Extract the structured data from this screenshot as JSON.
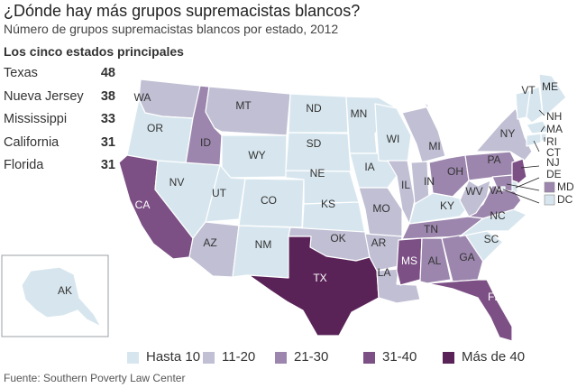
{
  "title": "¿Dónde hay más grupos supremacistas blancos?",
  "subtitle": "Número de grupos supremacistas blancos por estado, 2012",
  "top_heading": "Los cinco estados principales",
  "top_states": [
    {
      "name": "Texas",
      "count": "48"
    },
    {
      "name": "Nueva Jersey",
      "count": "38"
    },
    {
      "name": "Mississippi",
      "count": "33"
    },
    {
      "name": "California",
      "count": "31"
    },
    {
      "name": "Florida",
      "count": "31"
    }
  ],
  "colors": {
    "c1": "#d7e6ee",
    "c2": "#c0bfd4",
    "c3": "#9c86ad",
    "c4": "#7c4f85",
    "c5": "#5a2358",
    "border": "#ffffff",
    "label": "#333333",
    "label_light": "#ffffff"
  },
  "legend": [
    {
      "label": "Hasta 10",
      "cls": "c1"
    },
    {
      "label": "11-20",
      "cls": "c2"
    },
    {
      "label": "21-30",
      "cls": "c3"
    },
    {
      "label": "31-40",
      "cls": "c4"
    },
    {
      "label": "Más de 40",
      "cls": "c5"
    }
  ],
  "states": {
    "WA": "c2",
    "OR": "c1",
    "CA": "c4",
    "ID": "c3",
    "NV": "c1",
    "AZ": "c2",
    "MT": "c2",
    "WY": "c1",
    "UT": "c1",
    "CO": "c1",
    "NM": "c1",
    "ND": "c1",
    "SD": "c1",
    "NE": "c1",
    "KS": "c1",
    "OK": "c2",
    "TX": "c5",
    "MN": "c1",
    "IA": "c1",
    "MO": "c2",
    "AR": "c2",
    "LA": "c2",
    "WI": "c1",
    "IL": "c2",
    "MI": "c2",
    "IN": "c2",
    "KY": "c1",
    "TN": "c3",
    "MS": "c4",
    "AL": "c3",
    "GA": "c3",
    "FL": "c4",
    "SC": "c1",
    "NC": "c1",
    "VA": "c3",
    "WV": "c2",
    "OH": "c3",
    "PA": "c3",
    "NY": "c2",
    "VT": "c1",
    "NH": "c1",
    "ME": "c1",
    "MA": "c1",
    "RI": "c1",
    "CT": "c1",
    "NJ": "c4",
    "DE": "c1",
    "MD": "c3",
    "DC": "c1",
    "AK": "c1"
  },
  "callouts": [
    "NH",
    "MA",
    "RI",
    "CT",
    "NJ",
    "DE",
    "MD",
    "DC"
  ],
  "source": "Fuente: Southern Poverty Law Center"
}
